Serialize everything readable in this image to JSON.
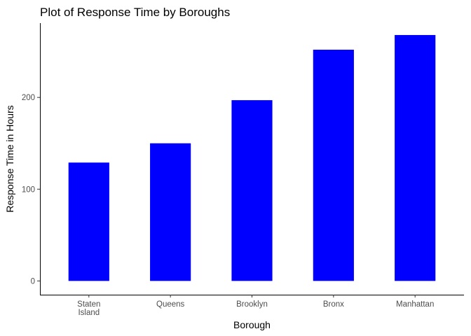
{
  "chart_data": {
    "type": "bar",
    "title": "Plot of Response Time by Boroughs",
    "xlabel": "Borough",
    "ylabel": "Response Time in Hours",
    "categories": [
      [
        "Staten",
        "Island"
      ],
      [
        "Queens"
      ],
      [
        "Brooklyn"
      ],
      [
        "Bronx"
      ],
      [
        "Manhattan"
      ]
    ],
    "values": [
      129,
      150,
      197,
      252,
      268
    ],
    "ylim": [
      -15,
      281
    ],
    "yticks": [
      0,
      100,
      200
    ],
    "bar_color": "#0000ff",
    "grid": false
  }
}
